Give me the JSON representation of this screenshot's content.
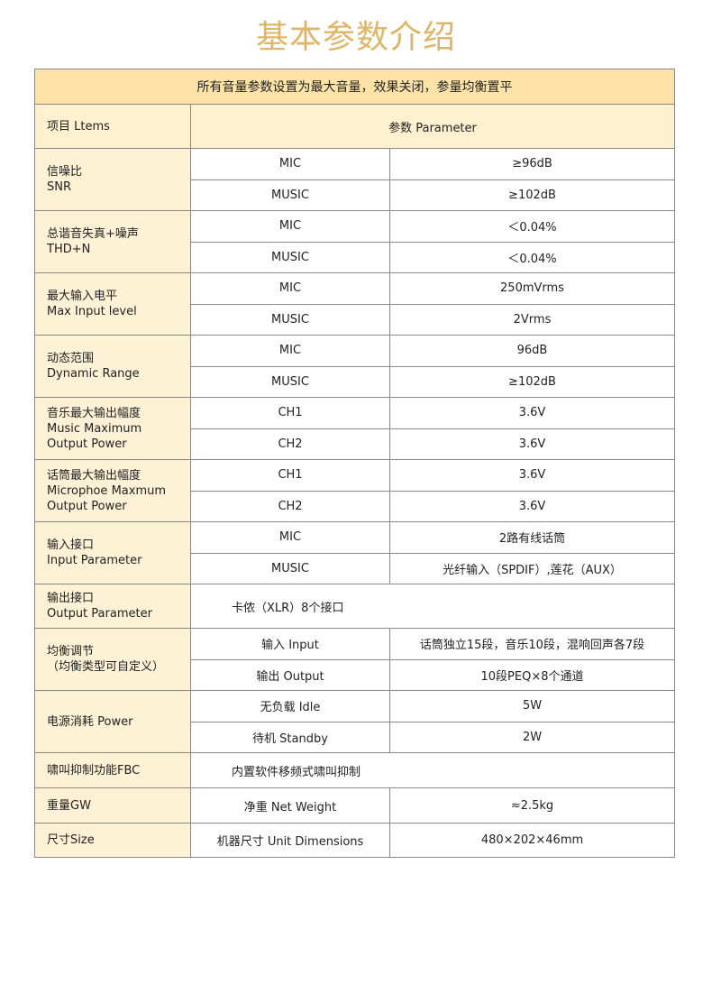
{
  "title": "基本参数介绍",
  "colors": {
    "title": "#dcb66a",
    "band": "#fde3a8",
    "header": "#fff0d0",
    "label_col": "#fdf1d6",
    "border": "#888888"
  },
  "note": "所有音量参数设置为最大音量，效果关闭，参量均衡置平",
  "header": {
    "items": "项目 Ltems",
    "parameter": "参数 Parameter"
  },
  "rows": [
    {
      "label": [
        "信噪比",
        "SNR"
      ],
      "sub": [
        {
          "name": "MIC",
          "value": "≥96dB"
        },
        {
          "name": "MUSIC",
          "value": "≥102dB"
        }
      ]
    },
    {
      "label": [
        "总谐音失真+噪声",
        "THD+N"
      ],
      "sub": [
        {
          "name": "MIC",
          "value": "＜0.04%"
        },
        {
          "name": "MUSIC",
          "value": "＜0.04%"
        }
      ]
    },
    {
      "label": [
        "最大输入电平",
        "Max Input level"
      ],
      "sub": [
        {
          "name": "MIC",
          "value": "250mVrms"
        },
        {
          "name": "MUSIC",
          "value": "2Vrms"
        }
      ]
    },
    {
      "label": [
        "动态范围",
        "Dynamic Range"
      ],
      "sub": [
        {
          "name": "MIC",
          "value": "96dB"
        },
        {
          "name": "MUSIC",
          "value": "≥102dB"
        }
      ]
    },
    {
      "label": [
        "音乐最大输出幅度",
        "Music Maximum",
        "Output Power"
      ],
      "sub": [
        {
          "name": "CH1",
          "value": "3.6V"
        },
        {
          "name": "CH2",
          "value": "3.6V"
        }
      ]
    },
    {
      "label": [
        "话筒最大输出幅度",
        "Microphoe Maxmum",
        "Output Power"
      ],
      "sub": [
        {
          "name": "CH1",
          "value": "3.6V"
        },
        {
          "name": "CH2",
          "value": "3.6V"
        }
      ]
    },
    {
      "label": [
        "输入接口",
        "Input Parameter"
      ],
      "sub": [
        {
          "name": "MIC",
          "value": "2路有线话筒"
        },
        {
          "name": "MUSIC",
          "value": "光纤输入（SPDIF）,莲花（AUX）"
        }
      ]
    },
    {
      "label": [
        "输出接口",
        "Output Parameter"
      ],
      "value": "卡侬（XLR）8个接口",
      "h": 49
    },
    {
      "label": [
        "均衡调节",
        "（均衡类型可自定义）"
      ],
      "sub": [
        {
          "name": "输入 Input",
          "value": "话筒独立15段，音乐10段，混响回声各7段"
        },
        {
          "name": "输出 Output",
          "value": "10段PEQ×8个通道"
        }
      ]
    },
    {
      "label": [
        "电源消耗 Power"
      ],
      "sub": [
        {
          "name": "无负载 Idle",
          "value": "5W"
        },
        {
          "name": "待机 Standby",
          "value": "2W"
        }
      ]
    },
    {
      "label": [
        "啸叫抑制功能FBC"
      ],
      "value": "内置软件移频式啸叫抑制",
      "h": 39
    },
    {
      "label": [
        "重量GW"
      ],
      "sub": [
        {
          "name": "净重 Net Weight",
          "value": "≈2.5kg"
        }
      ],
      "h": 39
    },
    {
      "label": [
        "尺寸Size"
      ],
      "sub": [
        {
          "name": "机器尺寸 Unit Dimensions",
          "value": "480×202×46mm"
        }
      ],
      "h": 38
    }
  ]
}
